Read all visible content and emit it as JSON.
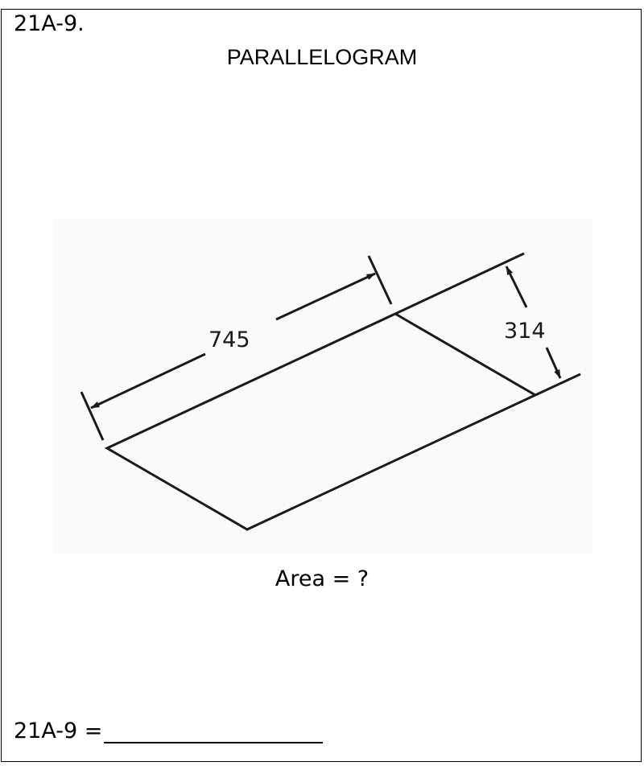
{
  "problem": {
    "id_label": "21A-9.",
    "title": "PARALLELOGRAM",
    "question": "Area = ?",
    "answer_label": "21A-9 ="
  },
  "figure": {
    "shape": "parallelogram",
    "base_dimension": "745",
    "height_dimension": "314",
    "line_color": "#1a1a1a"
  }
}
